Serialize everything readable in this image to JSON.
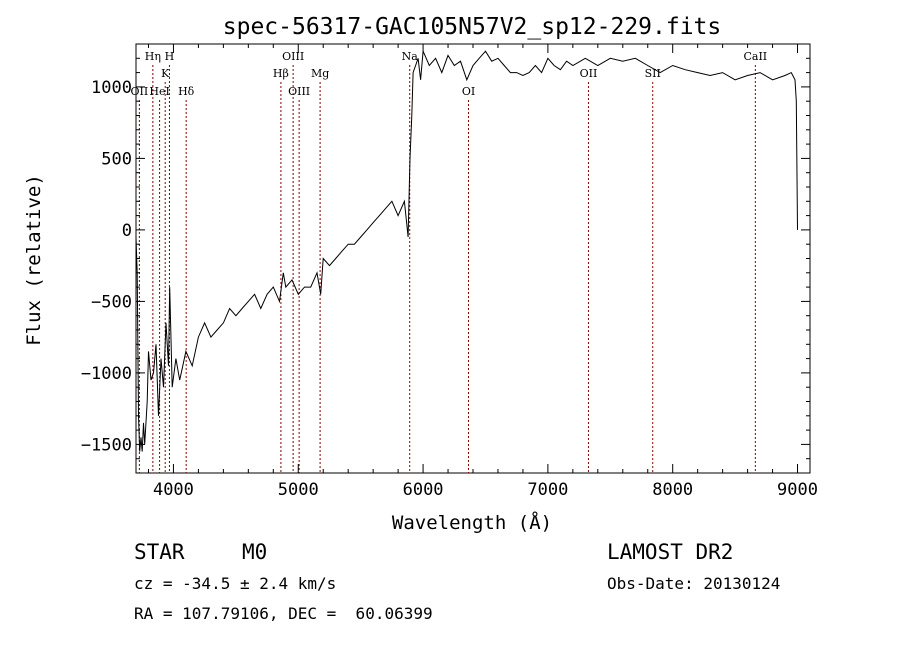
{
  "chart_data": {
    "type": "line",
    "title": "spec-56317-GAC105N57V2_sp12-229.fits",
    "xlabel": "Wavelength (Å)",
    "ylabel": "Flux (relative)",
    "xlim": [
      3700,
      9100
    ],
    "ylim": [
      -1700,
      1300
    ],
    "x_ticks": [
      4000,
      5000,
      6000,
      7000,
      8000,
      9000
    ],
    "y_ticks": [
      -1500,
      -1000,
      -500,
      0,
      500,
      1000
    ],
    "grid": false,
    "line_color": "#000000",
    "marker_color": "#8b0000",
    "series": [
      {
        "x": [
          3700,
          3710,
          3720,
          3730,
          3740,
          3750,
          3760,
          3770,
          3790,
          3800,
          3820,
          3840,
          3860,
          3880,
          3900,
          3920,
          3940,
          3960,
          3970,
          3990,
          4020,
          4050,
          4100,
          4150,
          4200,
          4250,
          4300,
          4350,
          4400,
          4450,
          4500,
          4550,
          4600,
          4650,
          4700,
          4750,
          4800,
          4850,
          4880,
          4900,
          4950,
          5000,
          5050,
          5100,
          5150,
          5180,
          5200,
          5250,
          5300,
          5350,
          5400,
          5450,
          5500,
          5550,
          5600,
          5650,
          5700,
          5750,
          5800,
          5850,
          5880,
          5890,
          5895,
          5900,
          5905,
          5910,
          5920,
          5940,
          5960,
          5980,
          6000,
          6050,
          6100,
          6150,
          6200,
          6250,
          6300,
          6350,
          6400,
          6450,
          6500,
          6550,
          6600,
          6650,
          6700,
          6750,
          6800,
          6850,
          6900,
          6950,
          7000,
          7050,
          7100,
          7150,
          7200,
          7300,
          7400,
          7500,
          7600,
          7700,
          7800,
          7900,
          8000,
          8100,
          8200,
          8300,
          8400,
          8500,
          8600,
          8700,
          8800,
          8900,
          8950,
          8980,
          8990,
          9000
        ],
        "y": [
          -50,
          -300,
          -1300,
          -1550,
          -1450,
          -1550,
          -1350,
          -1500,
          -1200,
          -850,
          -1050,
          -1000,
          -800,
          -1300,
          -900,
          -1100,
          -650,
          -950,
          -400,
          -1100,
          -900,
          -1050,
          -850,
          -950,
          -750,
          -650,
          -750,
          -700,
          -650,
          -550,
          -600,
          -550,
          -500,
          -450,
          -550,
          -450,
          -400,
          -500,
          -300,
          -400,
          -350,
          -450,
          -400,
          -400,
          -300,
          -450,
          -200,
          -250,
          -200,
          -150,
          -100,
          -100,
          -50,
          0,
          50,
          100,
          150,
          200,
          100,
          200,
          -50,
          300,
          500,
          600,
          700,
          800,
          1100,
          1150,
          1200,
          1050,
          1250,
          1150,
          1200,
          1100,
          1220,
          1150,
          1180,
          1050,
          1150,
          1200,
          1250,
          1180,
          1200,
          1150,
          1100,
          1100,
          1080,
          1100,
          1150,
          1100,
          1200,
          1150,
          1120,
          1180,
          1150,
          1200,
          1150,
          1200,
          1180,
          1200,
          1150,
          1100,
          1150,
          1120,
          1100,
          1080,
          1100,
          1050,
          1080,
          1100,
          1050,
          1080,
          1100,
          1050,
          900,
          0
        ]
      }
    ],
    "lines": [
      {
        "label": "Hη",
        "x": 3835,
        "row": 0
      },
      {
        "label": "H",
        "x": 3968,
        "row": 0
      },
      {
        "label": "K",
        "x": 3934,
        "row": 1
      },
      {
        "label": "OII",
        "x": 3727,
        "row": 2
      },
      {
        "label": "HeI",
        "x": 3889,
        "row": 2
      },
      {
        "label": "Hδ",
        "x": 4102,
        "row": 2
      },
      {
        "label": "OIII",
        "x": 4959,
        "row": 0
      },
      {
        "label": "Hβ",
        "x": 4861,
        "row": 1
      },
      {
        "label": "Mg",
        "x": 5175,
        "row": 1
      },
      {
        "label": "OIII",
        "x": 5007,
        "row": 2
      },
      {
        "label": "Na",
        "x": 5893,
        "row": 0
      },
      {
        "label": "OI",
        "x": 6364,
        "row": 2
      },
      {
        "label": "OII",
        "x": 7325,
        "row": 1
      },
      {
        "label": "SII",
        "x": 7840,
        "row": 1
      },
      {
        "label": "CaII",
        "x": 8662,
        "row": 0
      }
    ]
  },
  "footer": {
    "object_type": "STAR",
    "subclass": "M0",
    "survey": "LAMOST DR2",
    "redshift": "cz = -34.5 ± 2.4 km/s",
    "obs_date": "Obs-Date: 20130124",
    "coords": "RA = 107.79106, DEC =  60.06399"
  }
}
